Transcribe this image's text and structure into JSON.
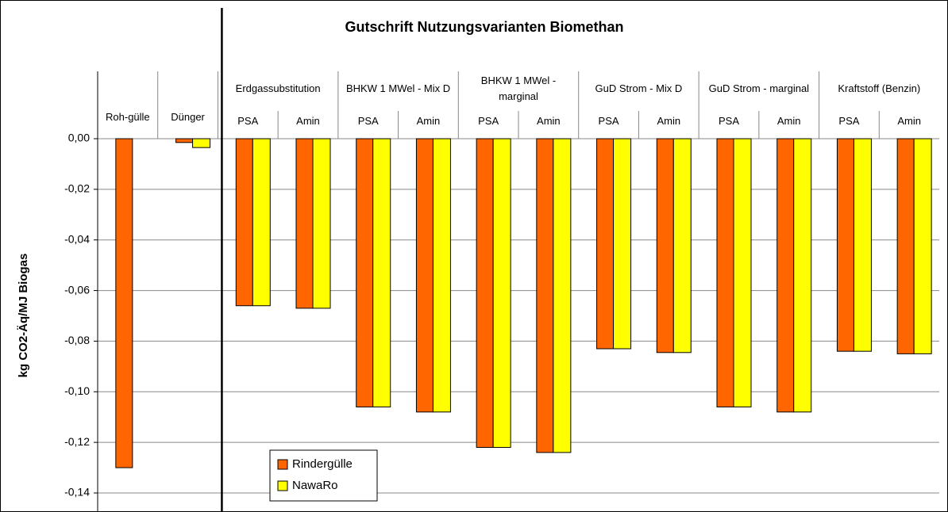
{
  "chart_data": {
    "type": "bar",
    "title": "Gutschrift Nutzungsvarianten Biomethan",
    "y_label": "kg CO2-Äq/MJ Biogas",
    "groups": [
      {
        "label": "Roh-gülle",
        "categories": [
          null
        ]
      },
      {
        "label": "Dünger",
        "categories": [
          null
        ]
      },
      {
        "label": "Erdgassubstitution",
        "categories": [
          "PSA",
          "Amin"
        ]
      },
      {
        "label": "BHKW 1 MWel - Mix D",
        "categories": [
          "PSA",
          "Amin"
        ]
      },
      {
        "label": "BHKW 1 MWel - marginal",
        "categories": [
          "PSA",
          "Amin"
        ]
      },
      {
        "label": "GuD Strom - Mix D",
        "categories": [
          "PSA",
          "Amin"
        ]
      },
      {
        "label": "GuD Strom - marginal",
        "categories": [
          "PSA",
          "Amin"
        ]
      },
      {
        "label": "Kraftstoff (Benzin)",
        "categories": [
          "PSA",
          "Amin"
        ]
      }
    ],
    "series": [
      {
        "name": "Rindergülle",
        "color": "#ff6600",
        "values": [
          -0.13,
          -0.0015,
          -0.066,
          -0.067,
          -0.106,
          -0.108,
          -0.122,
          -0.124,
          -0.083,
          -0.0845,
          -0.106,
          -0.108,
          -0.084,
          -0.085
        ]
      },
      {
        "name": "NawaRo",
        "color": "#ffff00",
        "values": [
          null,
          -0.0035,
          -0.066,
          -0.067,
          -0.106,
          -0.108,
          -0.122,
          -0.124,
          -0.083,
          -0.0845,
          -0.106,
          -0.108,
          -0.084,
          -0.085
        ]
      }
    ],
    "ylim": [
      -0.14,
      0
    ],
    "yticks": [
      {
        "value": 0,
        "label": "0,00"
      },
      {
        "value": -0.02,
        "label": "-0,02"
      },
      {
        "value": -0.04,
        "label": "-0,04"
      },
      {
        "value": -0.06,
        "label": "-0,06"
      },
      {
        "value": -0.08,
        "label": "-0,08"
      },
      {
        "value": -0.1,
        "label": "-0,10"
      },
      {
        "value": -0.12,
        "label": "-0,12"
      },
      {
        "value": -0.14,
        "label": "-0,14"
      }
    ],
    "grid": true,
    "legend": "bottom-left"
  }
}
